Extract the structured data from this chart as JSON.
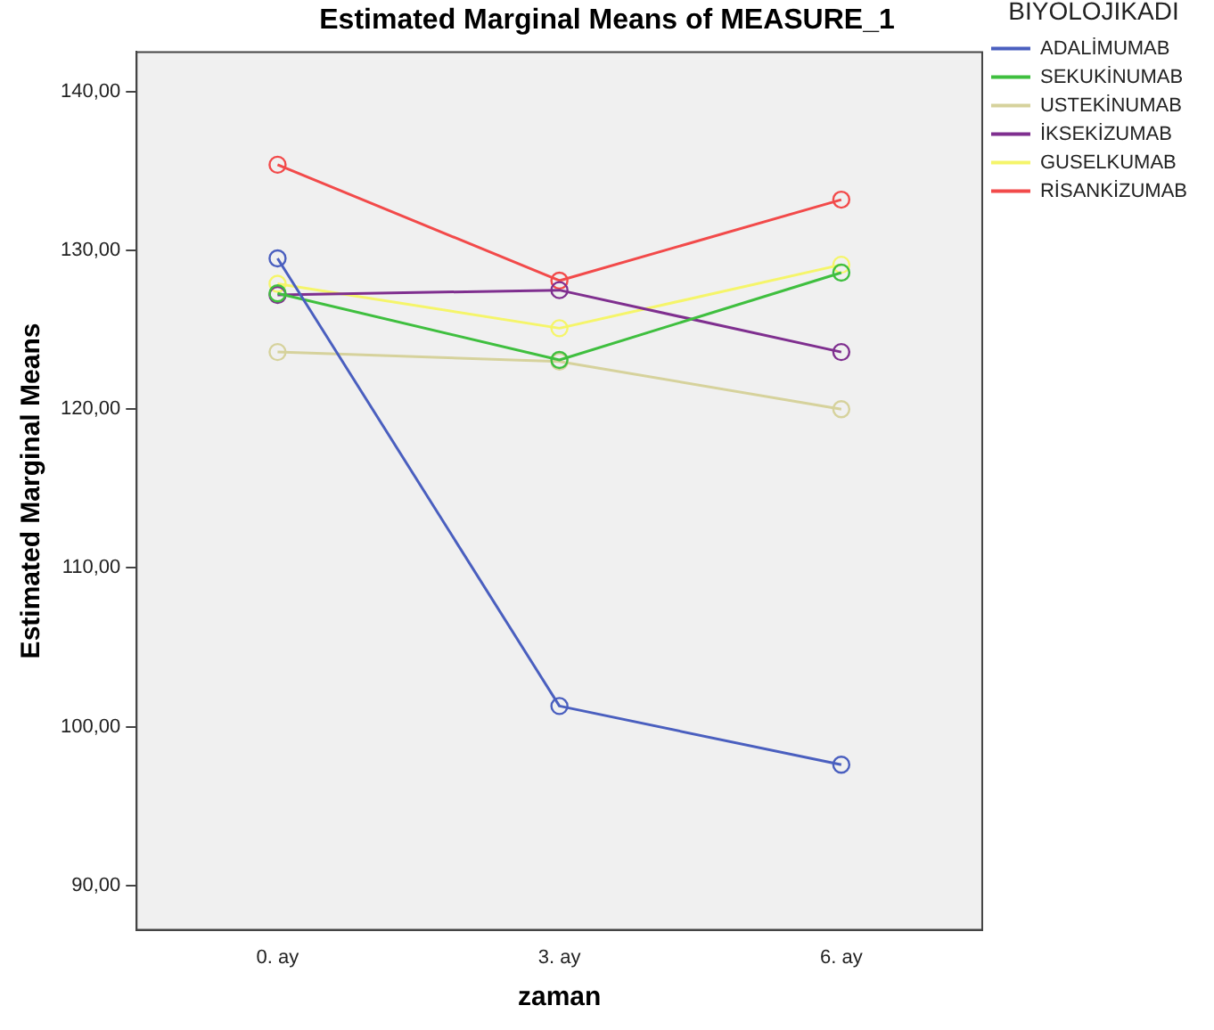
{
  "chart_data": {
    "type": "line",
    "title": "Estimated Marginal Means of MEASURE_1",
    "xlabel": "zaman",
    "ylabel": "Estimated Marginal Means",
    "legend_title": "BİYOLOJİKADI",
    "categories": [
      "0. ay",
      "3. ay",
      "6. ay"
    ],
    "series": [
      {
        "name": "ADALİMUMAB",
        "color": "#4a5fbf",
        "values": [
          129.5,
          101.3,
          97.6
        ]
      },
      {
        "name": "SEKUKİNUMAB",
        "color": "#3fbf3f",
        "values": [
          127.3,
          123.1,
          128.6
        ]
      },
      {
        "name": "USTEKİNUMAB",
        "color": "#d6d29c",
        "values": [
          123.6,
          123.0,
          120.0
        ]
      },
      {
        "name": "İKSEKİZUMAB",
        "color": "#7f2f8f",
        "values": [
          127.2,
          127.5,
          123.6
        ]
      },
      {
        "name": "GUSELKUMAB",
        "color": "#f5f56a",
        "values": [
          127.9,
          125.1,
          129.1
        ]
      },
      {
        "name": "RİSANKİZUMAB",
        "color": "#f24a4a",
        "values": [
          135.4,
          128.1,
          133.2
        ]
      }
    ],
    "ylim": [
      87.2,
      142.5
    ],
    "yticks": [
      {
        "value": 90,
        "label": "90,00"
      },
      {
        "value": 100,
        "label": "100,00"
      },
      {
        "value": 110,
        "label": "110,00"
      },
      {
        "value": 120,
        "label": "120,00"
      },
      {
        "value": 130,
        "label": "130,00"
      },
      {
        "value": 140,
        "label": "140,00"
      }
    ],
    "grid": false,
    "legend": "top right",
    "marker": "circle",
    "line_style": "solid"
  }
}
